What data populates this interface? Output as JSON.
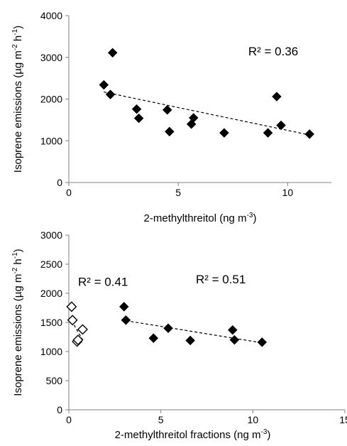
{
  "chart_data": [
    {
      "type": "scatter",
      "xlabel": "2-methylthreitol (ng m",
      "xlabel_sup": "-3",
      "xlabel_close": ")",
      "ylabel": "Isoprene emissions (µg m",
      "ylabel_sup1": "-2",
      "ylabel_mid": " h",
      "ylabel_sup2": "-1",
      "ylabel_close": ")",
      "xlim": [
        0,
        12
      ],
      "ylim": [
        0,
        4000
      ],
      "xticks": [
        "0",
        "5",
        "10"
      ],
      "xtick_values": [
        0,
        5,
        10
      ],
      "yticks": [
        "0",
        "1000",
        "2000",
        "3000",
        "4000"
      ],
      "ytick_values": [
        0,
        1000,
        2000,
        3000,
        4000
      ],
      "grid": false,
      "series": [
        {
          "marker": "filled-diamond",
          "color": "#000000",
          "x": [
            1.6,
            1.9,
            2.0,
            3.1,
            3.2,
            4.5,
            4.6,
            5.6,
            5.7,
            7.1,
            9.1,
            9.5,
            9.7,
            11.0
          ],
          "y": [
            2340,
            2110,
            3110,
            1760,
            1540,
            1740,
            1220,
            1400,
            1550,
            1190,
            1190,
            2060,
            1370,
            1160
          ]
        }
      ],
      "trendlines": [
        {
          "x": [
            1.6,
            11.0
          ],
          "y": [
            2170,
            1140
          ]
        }
      ],
      "annotations": [
        {
          "text": "R² = 0.36",
          "x": 8.2,
          "y": 3050
        }
      ]
    },
    {
      "type": "scatter",
      "xlabel": "2-methylthreitol fractions (ng m",
      "xlabel_sup": "-3",
      "xlabel_close": ")",
      "ylabel": "Isoprene emissions (µg m",
      "ylabel_sup1": "-2",
      "ylabel_mid": " h",
      "ylabel_sup2": "-1",
      "ylabel_close": ")",
      "xlim": [
        0,
        15
      ],
      "ylim": [
        0,
        3000
      ],
      "xticks": [
        "0",
        "5",
        "10",
        "15"
      ],
      "xtick_values": [
        0,
        5,
        10,
        15
      ],
      "yticks": [
        "0",
        "500",
        "1000",
        "1500",
        "2000",
        "2500",
        "3000"
      ],
      "ytick_values": [
        0,
        500,
        1000,
        1500,
        2000,
        2500,
        3000
      ],
      "grid": false,
      "series": [
        {
          "marker": "open-diamond",
          "color": "#000000",
          "x": [
            0.15,
            0.2,
            0.45,
            0.5,
            0.75
          ],
          "y": [
            1770,
            1540,
            1170,
            1200,
            1380
          ]
        },
        {
          "marker": "filled-diamond",
          "color": "#000000",
          "x": [
            3.0,
            3.1,
            4.6,
            5.4,
            6.6,
            8.9,
            9.0,
            10.5
          ],
          "y": [
            1770,
            1540,
            1230,
            1400,
            1190,
            1370,
            1200,
            1160
          ]
        }
      ],
      "trendlines": [
        {
          "x": [
            0.15,
            0.75
          ],
          "y": [
            1530,
            1200
          ]
        },
        {
          "x": [
            3.1,
            10.5
          ],
          "y": [
            1530,
            1150
          ]
        }
      ],
      "annotations": [
        {
          "text": "R² = 0.41",
          "x": 0.5,
          "y": 2130
        },
        {
          "text": "R² = 0.51",
          "x": 6.9,
          "y": 2170
        }
      ]
    }
  ]
}
